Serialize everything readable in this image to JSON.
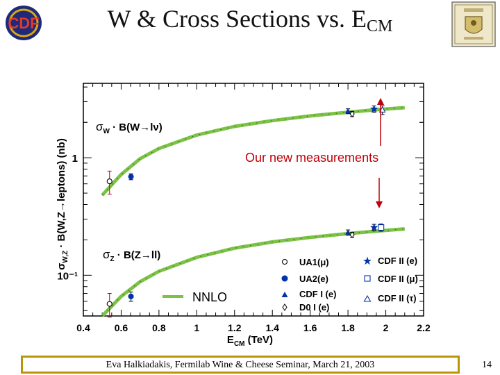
{
  "slide": {
    "title_main": "W & Cross Sections vs. E",
    "title_sub": "CM",
    "logo_left_text": "CDF",
    "logo_right_text": "THE UNIVERSITY OF ROCHESTER",
    "footer": "Eva Halkiadakis, Fermilab Wine & Cheese Seminar, March 21, 2003",
    "page_number": "14"
  },
  "chart_data": {
    "type": "scatter",
    "title": "",
    "xlabel": "E",
    "xlabel_sub": "CM",
    "xlabel_unit": " (TeV)",
    "ylabel": "σ",
    "ylabel_sub": "W,Z",
    "ylabel_rest": " · B(W,Z→leptons) (nb)",
    "xlim": [
      0.4,
      2.2
    ],
    "ylim": [
      0.045,
      4.3
    ],
    "yscale": "log",
    "xticks": [
      0.4,
      0.6,
      0.8,
      1,
      1.2,
      1.4,
      1.6,
      1.8,
      2,
      2.2
    ],
    "xtick_labels": [
      "0.4",
      "0.6",
      "0.8",
      "1",
      "1.2",
      "1.4",
      "1.6",
      "1.8",
      "2",
      "2.2"
    ],
    "yticks_major": [
      1,
      0.1
    ],
    "ytick_labels": [
      "1",
      "10⁻¹"
    ],
    "grid": false,
    "theory": {
      "name": "NNLO",
      "color": "#7cc246",
      "W": {
        "x": [
          0.5,
          0.6,
          0.7,
          0.8,
          1.0,
          1.2,
          1.4,
          1.6,
          1.8,
          1.96,
          2.0,
          2.1
        ],
        "y": [
          0.48,
          0.72,
          0.98,
          1.2,
          1.56,
          1.85,
          2.07,
          2.27,
          2.44,
          2.57,
          2.6,
          2.67
        ]
      },
      "Z": {
        "x": [
          0.5,
          0.6,
          0.7,
          0.8,
          1.0,
          1.2,
          1.4,
          1.6,
          1.8,
          1.96,
          2.0,
          2.1
        ],
        "y": [
          0.045,
          0.066,
          0.088,
          0.108,
          0.142,
          0.17,
          0.192,
          0.21,
          0.226,
          0.238,
          0.241,
          0.248
        ]
      }
    },
    "series": [
      {
        "name": "UA1(μ)",
        "marker": "open-circle",
        "points": [
          {
            "x": 0.546,
            "y": 0.63,
            "err": 0.14
          },
          {
            "x": 0.546,
            "y": 0.057,
            "err": 0.013
          }
        ]
      },
      {
        "name": "UA2(e)",
        "marker": "filled-circle",
        "points": [
          {
            "x": 0.63,
            "y": 0.69,
            "err": 0.04
          },
          {
            "x": 0.63,
            "y": 0.066,
            "err": 0.006
          }
        ]
      },
      {
        "name": "CDF I (e)",
        "marker": "filled-triangle",
        "points": [
          {
            "x": 1.8,
            "y": 2.49,
            "err": 0.12
          },
          {
            "x": 1.8,
            "y": 0.231,
            "err": 0.012
          }
        ]
      },
      {
        "name": "D0 I (e)",
        "marker": "open-diamond",
        "points": [
          {
            "x": 1.8,
            "y": 2.36,
            "err": 0.12
          },
          {
            "x": 1.8,
            "y": 0.221,
            "err": 0.011
          }
        ]
      },
      {
        "name": "CDF II (e)",
        "marker": "filled-star",
        "points": [
          {
            "x": 1.96,
            "y": 2.6,
            "err": 0.16
          },
          {
            "x": 1.96,
            "y": 0.255,
            "err": 0.016
          }
        ]
      },
      {
        "name": "CDF II (μ)",
        "marker": "open-square",
        "points": [
          {
            "x": 1.96,
            "y": 0.255,
            "err": 0.018
          }
        ]
      },
      {
        "name": "CDF II (τ)",
        "marker": "open-triangle",
        "points": [
          {
            "x": 1.96,
            "y": 2.55,
            "err": 0.22
          }
        ]
      }
    ],
    "annotations": {
      "w_label": "σ",
      "w_label_sub": "W",
      "w_label_rest": " · B(W→lν)",
      "z_label": "σ",
      "z_label_sub": "Z",
      "z_label_rest": " · B(Z→ll)",
      "new_measurements": "Our new measurements",
      "arrow_color": "#c0000a"
    },
    "legend_position": "bottom-right"
  }
}
